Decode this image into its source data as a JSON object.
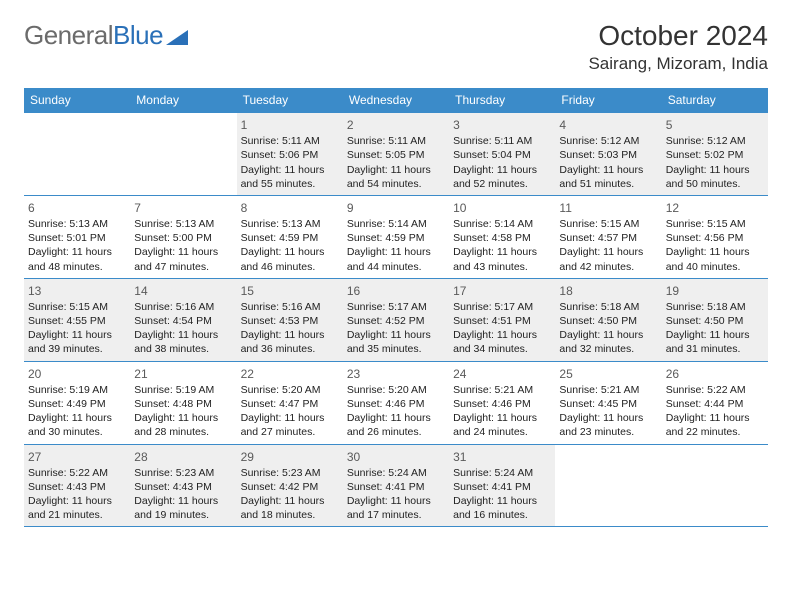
{
  "logo": {
    "text1": "General",
    "text2": "Blue"
  },
  "title": "October 2024",
  "location": "Sairang, Mizoram, India",
  "colors": {
    "header_bg": "#3b8bc9",
    "header_fg": "#ffffff",
    "border": "#3b8bc9",
    "shaded_bg": "#efefef",
    "logo_gray": "#6b6b6b",
    "logo_blue": "#2a70b8",
    "text": "#222222"
  },
  "weekdays": [
    "Sunday",
    "Monday",
    "Tuesday",
    "Wednesday",
    "Thursday",
    "Friday",
    "Saturday"
  ],
  "weeks": [
    [
      null,
      null,
      {
        "n": "1",
        "l1": "Sunrise: 5:11 AM",
        "l2": "Sunset: 5:06 PM",
        "l3": "Daylight: 11 hours",
        "l4": "and 55 minutes."
      },
      {
        "n": "2",
        "l1": "Sunrise: 5:11 AM",
        "l2": "Sunset: 5:05 PM",
        "l3": "Daylight: 11 hours",
        "l4": "and 54 minutes."
      },
      {
        "n": "3",
        "l1": "Sunrise: 5:11 AM",
        "l2": "Sunset: 5:04 PM",
        "l3": "Daylight: 11 hours",
        "l4": "and 52 minutes."
      },
      {
        "n": "4",
        "l1": "Sunrise: 5:12 AM",
        "l2": "Sunset: 5:03 PM",
        "l3": "Daylight: 11 hours",
        "l4": "and 51 minutes."
      },
      {
        "n": "5",
        "l1": "Sunrise: 5:12 AM",
        "l2": "Sunset: 5:02 PM",
        "l3": "Daylight: 11 hours",
        "l4": "and 50 minutes."
      }
    ],
    [
      {
        "n": "6",
        "l1": "Sunrise: 5:13 AM",
        "l2": "Sunset: 5:01 PM",
        "l3": "Daylight: 11 hours",
        "l4": "and 48 minutes."
      },
      {
        "n": "7",
        "l1": "Sunrise: 5:13 AM",
        "l2": "Sunset: 5:00 PM",
        "l3": "Daylight: 11 hours",
        "l4": "and 47 minutes."
      },
      {
        "n": "8",
        "l1": "Sunrise: 5:13 AM",
        "l2": "Sunset: 4:59 PM",
        "l3": "Daylight: 11 hours",
        "l4": "and 46 minutes."
      },
      {
        "n": "9",
        "l1": "Sunrise: 5:14 AM",
        "l2": "Sunset: 4:59 PM",
        "l3": "Daylight: 11 hours",
        "l4": "and 44 minutes."
      },
      {
        "n": "10",
        "l1": "Sunrise: 5:14 AM",
        "l2": "Sunset: 4:58 PM",
        "l3": "Daylight: 11 hours",
        "l4": "and 43 minutes."
      },
      {
        "n": "11",
        "l1": "Sunrise: 5:15 AM",
        "l2": "Sunset: 4:57 PM",
        "l3": "Daylight: 11 hours",
        "l4": "and 42 minutes."
      },
      {
        "n": "12",
        "l1": "Sunrise: 5:15 AM",
        "l2": "Sunset: 4:56 PM",
        "l3": "Daylight: 11 hours",
        "l4": "and 40 minutes."
      }
    ],
    [
      {
        "n": "13",
        "l1": "Sunrise: 5:15 AM",
        "l2": "Sunset: 4:55 PM",
        "l3": "Daylight: 11 hours",
        "l4": "and 39 minutes."
      },
      {
        "n": "14",
        "l1": "Sunrise: 5:16 AM",
        "l2": "Sunset: 4:54 PM",
        "l3": "Daylight: 11 hours",
        "l4": "and 38 minutes."
      },
      {
        "n": "15",
        "l1": "Sunrise: 5:16 AM",
        "l2": "Sunset: 4:53 PM",
        "l3": "Daylight: 11 hours",
        "l4": "and 36 minutes."
      },
      {
        "n": "16",
        "l1": "Sunrise: 5:17 AM",
        "l2": "Sunset: 4:52 PM",
        "l3": "Daylight: 11 hours",
        "l4": "and 35 minutes."
      },
      {
        "n": "17",
        "l1": "Sunrise: 5:17 AM",
        "l2": "Sunset: 4:51 PM",
        "l3": "Daylight: 11 hours",
        "l4": "and 34 minutes."
      },
      {
        "n": "18",
        "l1": "Sunrise: 5:18 AM",
        "l2": "Sunset: 4:50 PM",
        "l3": "Daylight: 11 hours",
        "l4": "and 32 minutes."
      },
      {
        "n": "19",
        "l1": "Sunrise: 5:18 AM",
        "l2": "Sunset: 4:50 PM",
        "l3": "Daylight: 11 hours",
        "l4": "and 31 minutes."
      }
    ],
    [
      {
        "n": "20",
        "l1": "Sunrise: 5:19 AM",
        "l2": "Sunset: 4:49 PM",
        "l3": "Daylight: 11 hours",
        "l4": "and 30 minutes."
      },
      {
        "n": "21",
        "l1": "Sunrise: 5:19 AM",
        "l2": "Sunset: 4:48 PM",
        "l3": "Daylight: 11 hours",
        "l4": "and 28 minutes."
      },
      {
        "n": "22",
        "l1": "Sunrise: 5:20 AM",
        "l2": "Sunset: 4:47 PM",
        "l3": "Daylight: 11 hours",
        "l4": "and 27 minutes."
      },
      {
        "n": "23",
        "l1": "Sunrise: 5:20 AM",
        "l2": "Sunset: 4:46 PM",
        "l3": "Daylight: 11 hours",
        "l4": "and 26 minutes."
      },
      {
        "n": "24",
        "l1": "Sunrise: 5:21 AM",
        "l2": "Sunset: 4:46 PM",
        "l3": "Daylight: 11 hours",
        "l4": "and 24 minutes."
      },
      {
        "n": "25",
        "l1": "Sunrise: 5:21 AM",
        "l2": "Sunset: 4:45 PM",
        "l3": "Daylight: 11 hours",
        "l4": "and 23 minutes."
      },
      {
        "n": "26",
        "l1": "Sunrise: 5:22 AM",
        "l2": "Sunset: 4:44 PM",
        "l3": "Daylight: 11 hours",
        "l4": "and 22 minutes."
      }
    ],
    [
      {
        "n": "27",
        "l1": "Sunrise: 5:22 AM",
        "l2": "Sunset: 4:43 PM",
        "l3": "Daylight: 11 hours",
        "l4": "and 21 minutes."
      },
      {
        "n": "28",
        "l1": "Sunrise: 5:23 AM",
        "l2": "Sunset: 4:43 PM",
        "l3": "Daylight: 11 hours",
        "l4": "and 19 minutes."
      },
      {
        "n": "29",
        "l1": "Sunrise: 5:23 AM",
        "l2": "Sunset: 4:42 PM",
        "l3": "Daylight: 11 hours",
        "l4": "and 18 minutes."
      },
      {
        "n": "30",
        "l1": "Sunrise: 5:24 AM",
        "l2": "Sunset: 4:41 PM",
        "l3": "Daylight: 11 hours",
        "l4": "and 17 minutes."
      },
      {
        "n": "31",
        "l1": "Sunrise: 5:24 AM",
        "l2": "Sunset: 4:41 PM",
        "l3": "Daylight: 11 hours",
        "l4": "and 16 minutes."
      },
      null,
      null
    ]
  ],
  "shaded_rows": [
    0,
    2,
    4
  ]
}
